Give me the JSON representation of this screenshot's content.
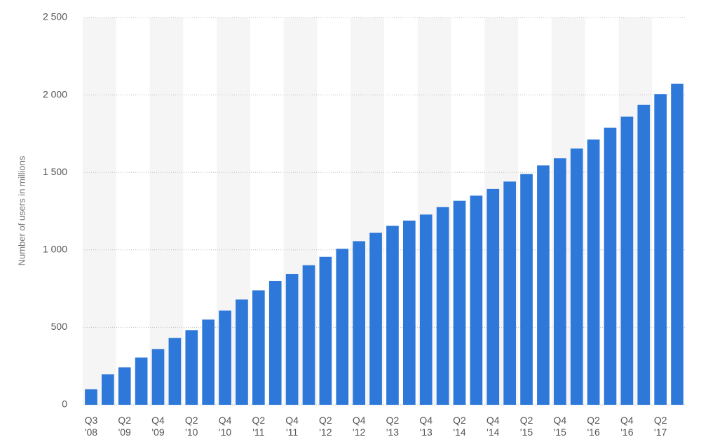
{
  "chart_data": {
    "type": "bar",
    "y_label": "Number of users in millions",
    "categories": [
      "Q3\n'08",
      null,
      "Q2\n'09",
      null,
      "Q4\n'09",
      null,
      "Q2\n'10",
      null,
      "Q4\n'10",
      null,
      "Q2\n'11",
      null,
      "Q4\n'11",
      null,
      "Q2\n'12",
      null,
      "Q4\n'12",
      null,
      "Q2\n'13",
      null,
      "Q4\n'13",
      null,
      "Q2\n'14",
      null,
      "Q4\n'14",
      null,
      "Q2\n'15",
      null,
      "Q4\n'15",
      null,
      "Q2\n'16",
      null,
      "Q4\n'16",
      null,
      "Q2\n'17",
      null
    ],
    "values": [
      100,
      197,
      242,
      305,
      360,
      431,
      482,
      550,
      608,
      680,
      739,
      800,
      845,
      901,
      955,
      1007,
      1056,
      1110,
      1155,
      1189,
      1228,
      1276,
      1317,
      1350,
      1393,
      1441,
      1490,
      1545,
      1591,
      1654,
      1712,
      1788,
      1860,
      1936,
      2006,
      2072
    ],
    "color": "#2e78d9",
    "ylim": [
      0,
      2500
    ],
    "yticks": [
      0,
      500,
      {
        "value": 1000,
        "label": "1 000"
      },
      {
        "value": 1500,
        "label": "1 500"
      },
      {
        "value": 2000,
        "label": "2 000"
      },
      {
        "value": 2500,
        "label": "2 500"
      }
    ],
    "grid": true
  }
}
